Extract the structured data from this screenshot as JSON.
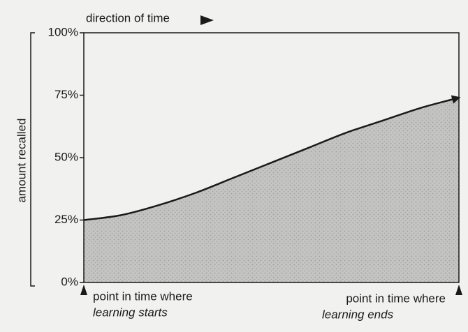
{
  "chart_data": {
    "type": "area",
    "title": "direction of time",
    "y_label": "amount recalled",
    "categories": [
      null,
      null,
      null,
      null,
      null,
      null,
      null,
      null,
      null,
      null,
      null
    ],
    "values": [
      25,
      27,
      31,
      36,
      42,
      48,
      54,
      60,
      65,
      70,
      74
    ],
    "color": "#c4c4c2",
    "ylim": [
      0,
      100
    ],
    "yticks": [
      {
        "value": 0,
        "label": "0%"
      },
      {
        "value": 25,
        "label": "25%"
      },
      {
        "value": 50,
        "label": "50%"
      },
      {
        "value": 75,
        "label": "75%"
      },
      {
        "value": 100,
        "label": "100%"
      }
    ],
    "annotations": [
      {
        "line1": "point in time where",
        "line2": "learning starts"
      },
      {
        "line1": "point in time where",
        "line2": "learning ends"
      }
    ]
  }
}
